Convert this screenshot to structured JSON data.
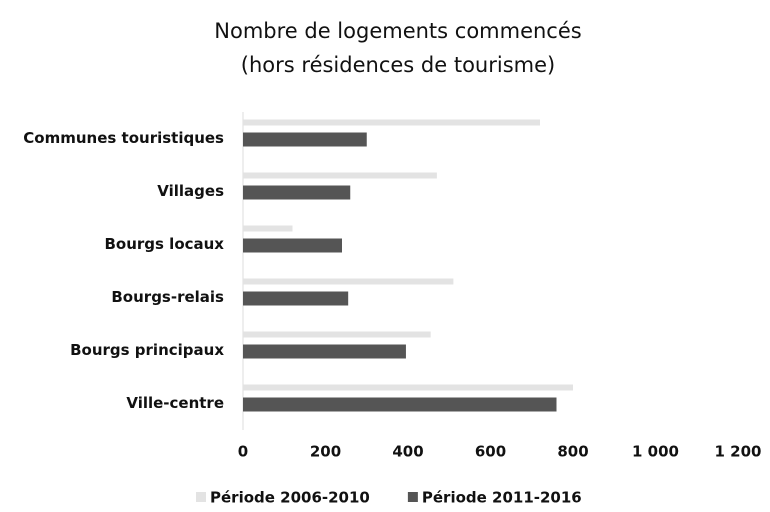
{
  "chart_data": {
    "type": "barh",
    "title": [
      "Nombre de logements commencés",
      "(hors résidences de tourisme)"
    ],
    "categories": [
      "Communes touristiques",
      "Villages",
      "Bourgs locaux",
      "Bourgs-relais",
      "Bourgs principaux",
      "Ville-centre"
    ],
    "series": [
      {
        "name": "Période 2006-2010",
        "color": "#e3e3e3",
        "values": [
          720,
          470,
          120,
          510,
          455,
          800
        ]
      },
      {
        "name": "Période 2011-2016",
        "color": "#555555",
        "values": [
          300,
          260,
          240,
          255,
          395,
          760
        ]
      }
    ],
    "xlim": [
      0,
      1200
    ],
    "xticks": [
      0,
      200,
      400,
      600,
      800,
      {
        "value": 1000,
        "label": "1 000"
      },
      {
        "value": 1200,
        "label": "1 200"
      }
    ]
  }
}
